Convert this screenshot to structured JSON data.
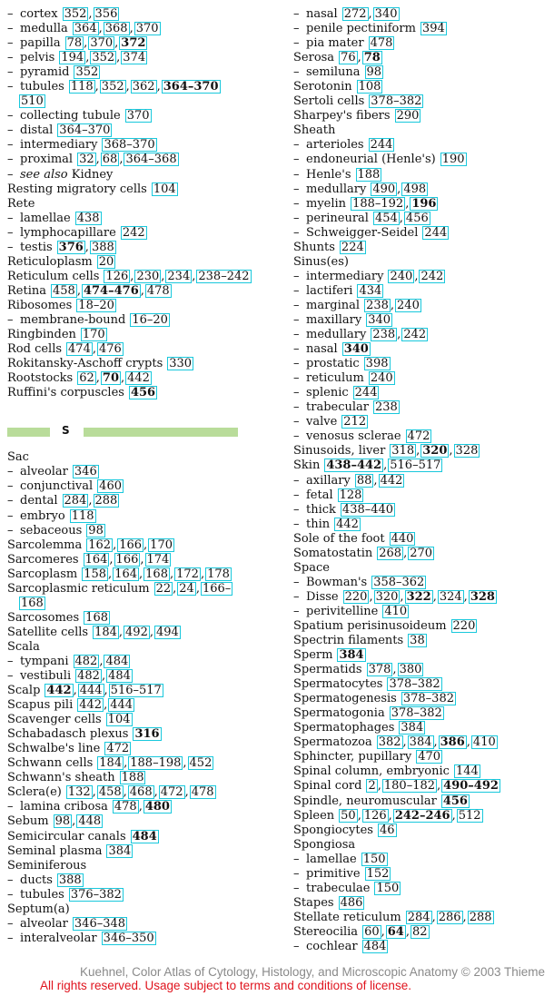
{
  "left_top": [
    {
      "sub": true,
      "term": "cortex",
      "pages": [
        [
          "352",
          0
        ],
        [
          "356",
          0
        ]
      ]
    },
    {
      "sub": true,
      "term": "medulla",
      "pages": [
        [
          "364",
          0
        ],
        [
          "368",
          0
        ],
        [
          "370",
          0
        ]
      ]
    },
    {
      "sub": true,
      "term": "papilla",
      "pages": [
        [
          "78",
          0
        ],
        [
          "370",
          0
        ],
        [
          "372",
          1
        ]
      ]
    },
    {
      "sub": true,
      "term": "pelvis",
      "pages": [
        [
          "194",
          0
        ],
        [
          "352",
          0
        ],
        [
          "374",
          0
        ]
      ]
    },
    {
      "sub": true,
      "term": "pyramid",
      "pages": [
        [
          "352",
          0
        ]
      ]
    },
    {
      "sub": true,
      "term": "tubules",
      "pages": [
        [
          "118",
          0
        ],
        [
          "352",
          0
        ],
        [
          "362",
          0
        ],
        [
          "364–370",
          1
        ]
      ]
    },
    {
      "cont": true,
      "term": "",
      "pages": [
        [
          "510",
          0
        ]
      ]
    },
    {
      "sub": true,
      "term": "collecting tubule",
      "pages": [
        [
          "370",
          0
        ]
      ]
    },
    {
      "sub": true,
      "term": "distal",
      "pages": [
        [
          "364–370",
          0
        ]
      ]
    },
    {
      "sub": true,
      "term": "intermediary",
      "pages": [
        [
          "368–370",
          0
        ]
      ]
    },
    {
      "sub": true,
      "term": "proximal",
      "pages": [
        [
          "32",
          0
        ],
        [
          "68",
          0
        ],
        [
          "364–368",
          0
        ]
      ]
    },
    {
      "sub": true,
      "italic": "see also",
      "term": "Kidney",
      "pages": []
    },
    {
      "term": "Resting migratory cells",
      "pages": [
        [
          "104",
          0
        ]
      ]
    },
    {
      "term": "Rete",
      "pages": []
    },
    {
      "sub": true,
      "term": "lamellae",
      "pages": [
        [
          "438",
          0
        ]
      ]
    },
    {
      "sub": true,
      "term": "lymphocapillare",
      "pages": [
        [
          "242",
          0
        ]
      ]
    },
    {
      "sub": true,
      "term": "testis",
      "pages": [
        [
          "376",
          1
        ],
        [
          "388",
          0
        ]
      ]
    },
    {
      "term": "Reticuloplasm",
      "pages": [
        [
          "20",
          0
        ]
      ]
    },
    {
      "term": "Reticulum cells",
      "pages": [
        [
          "126",
          0
        ],
        [
          "230",
          0
        ],
        [
          "234",
          0
        ],
        [
          "238–242",
          0
        ]
      ]
    },
    {
      "term": "Retina",
      "pages": [
        [
          "458",
          0
        ],
        [
          "474–476",
          1
        ],
        [
          "478",
          0
        ]
      ]
    },
    {
      "term": "Ribosomes",
      "pages": [
        [
          "18–20",
          0
        ]
      ]
    },
    {
      "sub": true,
      "term": "membrane-bound",
      "pages": [
        [
          "16–20",
          0
        ]
      ]
    },
    {
      "term": "Ringbinden",
      "pages": [
        [
          "170",
          0
        ]
      ]
    },
    {
      "term": "Rod cells",
      "pages": [
        [
          "474",
          0
        ],
        [
          "476",
          0
        ]
      ]
    },
    {
      "term": "Rokitansky-Aschoff crypts",
      "pages": [
        [
          "330",
          0
        ]
      ]
    },
    {
      "term": "Rootstocks",
      "pages": [
        [
          "62",
          0
        ],
        [
          "70",
          1
        ],
        [
          "442",
          0
        ]
      ]
    },
    {
      "term": "Ruffini's corpuscles",
      "pages": [
        [
          "456",
          1
        ]
      ]
    }
  ],
  "section_letter": "S",
  "left_bottom": [
    {
      "term": "Sac",
      "pages": []
    },
    {
      "sub": true,
      "term": "alveolar",
      "pages": [
        [
          "346",
          0
        ]
      ]
    },
    {
      "sub": true,
      "term": "conjunctival",
      "pages": [
        [
          "460",
          0
        ]
      ]
    },
    {
      "sub": true,
      "term": "dental",
      "pages": [
        [
          "284",
          0
        ],
        [
          "288",
          0
        ]
      ]
    },
    {
      "sub": true,
      "term": "embryo",
      "pages": [
        [
          "118",
          0
        ]
      ]
    },
    {
      "sub": true,
      "term": "sebaceous",
      "pages": [
        [
          "98",
          0
        ]
      ]
    },
    {
      "term": "Sarcolemma",
      "pages": [
        [
          "162",
          0
        ],
        [
          "166",
          0
        ],
        [
          "170",
          0
        ]
      ]
    },
    {
      "term": "Sarcomeres",
      "pages": [
        [
          "164",
          0
        ],
        [
          "166",
          0
        ],
        [
          "174",
          0
        ]
      ]
    },
    {
      "term": "Sarcoplasm",
      "pages": [
        [
          "158",
          0
        ],
        [
          "164",
          0
        ],
        [
          "168",
          0
        ],
        [
          "172",
          0
        ],
        [
          "178",
          0
        ]
      ]
    },
    {
      "term": "Sarcoplasmic reticulum",
      "pages": [
        [
          "22",
          0
        ],
        [
          "24",
          0
        ],
        [
          "166–",
          0
        ]
      ]
    },
    {
      "cont": true,
      "term": "",
      "pages": [
        [
          "168",
          0
        ]
      ]
    },
    {
      "term": "Sarcosomes",
      "pages": [
        [
          "168",
          0
        ]
      ]
    },
    {
      "term": "Satellite cells",
      "pages": [
        [
          "184",
          0
        ],
        [
          "492",
          0
        ],
        [
          "494",
          0
        ]
      ]
    },
    {
      "term": "Scala",
      "pages": []
    },
    {
      "sub": true,
      "term": "tympani",
      "pages": [
        [
          "482",
          0
        ],
        [
          "484",
          0
        ]
      ]
    },
    {
      "sub": true,
      "term": "vestibuli",
      "pages": [
        [
          "482",
          0
        ],
        [
          "484",
          0
        ]
      ]
    },
    {
      "term": "Scalp",
      "pages": [
        [
          "442",
          1
        ],
        [
          "444",
          0
        ],
        [
          "516–517",
          0
        ]
      ]
    },
    {
      "term": "Scapus pili",
      "pages": [
        [
          "442",
          0
        ],
        [
          "444",
          0
        ]
      ]
    },
    {
      "term": "Scavenger cells",
      "pages": [
        [
          "104",
          0
        ]
      ]
    },
    {
      "term": "Schabadasch plexus",
      "pages": [
        [
          "316",
          1
        ]
      ]
    },
    {
      "term": "Schwalbe's line",
      "pages": [
        [
          "472",
          0
        ]
      ]
    },
    {
      "term": "Schwann cells",
      "pages": [
        [
          "184",
          0
        ],
        [
          "188–198",
          0
        ],
        [
          "452",
          0
        ]
      ]
    },
    {
      "term": "Schwann's sheath",
      "pages": [
        [
          "188",
          0
        ]
      ]
    },
    {
      "term": "Sclera(e)",
      "pages": [
        [
          "132",
          0
        ],
        [
          "458",
          0
        ],
        [
          "468",
          0
        ],
        [
          "472",
          0
        ],
        [
          "478",
          0
        ]
      ]
    },
    {
      "sub": true,
      "term": "lamina cribosa",
      "pages": [
        [
          "478",
          0
        ],
        [
          "480",
          1
        ]
      ]
    },
    {
      "term": "Sebum",
      "pages": [
        [
          "98",
          0
        ],
        [
          "448",
          0
        ]
      ]
    },
    {
      "term": "Semicircular canals",
      "pages": [
        [
          "484",
          1
        ]
      ]
    },
    {
      "term": "Seminal plasma",
      "pages": [
        [
          "384",
          0
        ]
      ]
    },
    {
      "term": "Seminiferous",
      "pages": []
    },
    {
      "sub": true,
      "term": "ducts",
      "pages": [
        [
          "388",
          0
        ]
      ]
    },
    {
      "sub": true,
      "term": "tubules",
      "pages": [
        [
          "376–382",
          0
        ]
      ]
    },
    {
      "term": "Septum(a)",
      "pages": []
    },
    {
      "sub": true,
      "term": "alveolar",
      "pages": [
        [
          "346–348",
          0
        ]
      ]
    },
    {
      "sub": true,
      "term": "interalveolar",
      "pages": [
        [
          "346–350",
          0
        ]
      ]
    }
  ],
  "right": [
    {
      "sub": true,
      "term": "nasal",
      "pages": [
        [
          "272",
          0
        ],
        [
          "340",
          0
        ]
      ]
    },
    {
      "sub": true,
      "term": "penile pectiniform",
      "pages": [
        [
          "394",
          0
        ]
      ]
    },
    {
      "sub": true,
      "term": "pia mater",
      "pages": [
        [
          "478",
          0
        ]
      ]
    },
    {
      "term": "Serosa",
      "pages": [
        [
          "76",
          0
        ],
        [
          "78",
          1
        ]
      ]
    },
    {
      "sub": true,
      "term": "semiluna",
      "pages": [
        [
          "98",
          0
        ]
      ]
    },
    {
      "term": "Serotonin",
      "pages": [
        [
          "108",
          0
        ]
      ]
    },
    {
      "term": "Sertoli cells",
      "pages": [
        [
          "378–382",
          0
        ]
      ]
    },
    {
      "term": "Sharpey's fibers",
      "pages": [
        [
          "290",
          0
        ]
      ]
    },
    {
      "term": "Sheath",
      "pages": []
    },
    {
      "sub": true,
      "term": "arterioles",
      "pages": [
        [
          "244",
          0
        ]
      ]
    },
    {
      "sub": true,
      "term": "endoneurial (Henle's)",
      "pages": [
        [
          "190",
          0
        ]
      ]
    },
    {
      "sub": true,
      "term": "Henle's",
      "pages": [
        [
          "188",
          0
        ]
      ]
    },
    {
      "sub": true,
      "term": "medullary",
      "pages": [
        [
          "490",
          0
        ],
        [
          "498",
          0
        ]
      ]
    },
    {
      "sub": true,
      "term": "myelin",
      "pages": [
        [
          "188–192",
          0
        ],
        [
          "196",
          1
        ]
      ]
    },
    {
      "sub": true,
      "term": "perineural",
      "pages": [
        [
          "454",
          0
        ],
        [
          "456",
          0
        ]
      ]
    },
    {
      "sub": true,
      "term": "Schweigger-Seidel",
      "pages": [
        [
          "244",
          0
        ]
      ]
    },
    {
      "term": "Shunts",
      "pages": [
        [
          "224",
          0
        ]
      ]
    },
    {
      "term": "Sinus(es)",
      "pages": []
    },
    {
      "sub": true,
      "term": "intermediary",
      "pages": [
        [
          "240",
          0
        ],
        [
          "242",
          0
        ]
      ]
    },
    {
      "sub": true,
      "term": "lactiferi",
      "pages": [
        [
          "434",
          0
        ]
      ]
    },
    {
      "sub": true,
      "term": "marginal",
      "pages": [
        [
          "238",
          0
        ],
        [
          "240",
          0
        ]
      ]
    },
    {
      "sub": true,
      "term": "maxillary",
      "pages": [
        [
          "340",
          0
        ]
      ]
    },
    {
      "sub": true,
      "term": "medullary",
      "pages": [
        [
          "238",
          0
        ],
        [
          "242",
          0
        ]
      ]
    },
    {
      "sub": true,
      "term": "nasal",
      "pages": [
        [
          "340",
          1
        ]
      ]
    },
    {
      "sub": true,
      "term": "prostatic",
      "pages": [
        [
          "398",
          0
        ]
      ]
    },
    {
      "sub": true,
      "term": "reticulum",
      "pages": [
        [
          "240",
          0
        ]
      ]
    },
    {
      "sub": true,
      "term": "splenic",
      "pages": [
        [
          "244",
          0
        ]
      ]
    },
    {
      "sub": true,
      "term": "trabecular",
      "pages": [
        [
          "238",
          0
        ]
      ]
    },
    {
      "sub": true,
      "term": "valve",
      "pages": [
        [
          "212",
          0
        ]
      ]
    },
    {
      "sub": true,
      "term": "venosus sclerae",
      "pages": [
        [
          "472",
          0
        ]
      ]
    },
    {
      "term": "Sinusoids, liver",
      "pages": [
        [
          "318",
          0
        ],
        [
          "320",
          1
        ],
        [
          "328",
          0
        ]
      ]
    },
    {
      "term": "Skin",
      "pages": [
        [
          "438–442",
          1
        ],
        [
          "516–517",
          0
        ]
      ]
    },
    {
      "sub": true,
      "term": "axillary",
      "pages": [
        [
          "88",
          0
        ],
        [
          "442",
          0
        ]
      ]
    },
    {
      "sub": true,
      "term": "fetal",
      "pages": [
        [
          "128",
          0
        ]
      ]
    },
    {
      "sub": true,
      "term": "thick",
      "pages": [
        [
          "438–440",
          0
        ]
      ]
    },
    {
      "sub": true,
      "term": "thin",
      "pages": [
        [
          "442",
          0
        ]
      ]
    },
    {
      "term": "Sole of the foot",
      "pages": [
        [
          "440",
          0
        ]
      ]
    },
    {
      "term": "Somatostatin",
      "pages": [
        [
          "268",
          0
        ],
        [
          "270",
          0
        ]
      ]
    },
    {
      "term": "Space",
      "pages": []
    },
    {
      "sub": true,
      "term": "Bowman's",
      "pages": [
        [
          "358–362",
          0
        ]
      ]
    },
    {
      "sub": true,
      "term": "Disse",
      "pages": [
        [
          "220",
          0
        ],
        [
          "320",
          0
        ],
        [
          "322",
          1
        ],
        [
          "324",
          0
        ],
        [
          "328",
          1
        ]
      ]
    },
    {
      "sub": true,
      "term": "perivitelline",
      "pages": [
        [
          "410",
          0
        ]
      ]
    },
    {
      "term": "Spatium perisinusoideum",
      "pages": [
        [
          "220",
          0
        ]
      ]
    },
    {
      "term": "Spectrin filaments",
      "pages": [
        [
          "38",
          0
        ]
      ]
    },
    {
      "term": "Sperm",
      "pages": [
        [
          "384",
          1
        ]
      ]
    },
    {
      "term": "Spermatids",
      "pages": [
        [
          "378",
          0
        ],
        [
          "380",
          0
        ]
      ]
    },
    {
      "term": "Spermatocytes",
      "pages": [
        [
          "378–382",
          0
        ]
      ]
    },
    {
      "term": "Spermatogenesis",
      "pages": [
        [
          "378–382",
          0
        ]
      ]
    },
    {
      "term": "Spermatogonia",
      "pages": [
        [
          "378–382",
          0
        ]
      ]
    },
    {
      "term": "Spermatophages",
      "pages": [
        [
          "384",
          0
        ]
      ]
    },
    {
      "term": "Spermatozoa",
      "pages": [
        [
          "382",
          0
        ],
        [
          "384",
          0
        ],
        [
          "386",
          1
        ],
        [
          "410",
          0
        ]
      ]
    },
    {
      "term": "Sphincter, pupillary",
      "pages": [
        [
          "470",
          0
        ]
      ]
    },
    {
      "term": "Spinal column, embryonic",
      "pages": [
        [
          "144",
          0
        ]
      ]
    },
    {
      "term": "Spinal cord",
      "pages": [
        [
          "2",
          0
        ],
        [
          "180–182",
          0
        ],
        [
          "490–492",
          1
        ]
      ]
    },
    {
      "term": "Spindle, neuromuscular",
      "pages": [
        [
          "456",
          1
        ]
      ]
    },
    {
      "term": "Spleen",
      "pages": [
        [
          "50",
          0
        ],
        [
          "126",
          0
        ],
        [
          "242–246",
          1
        ],
        [
          "512",
          0
        ]
      ]
    },
    {
      "term": "Spongiocytes",
      "pages": [
        [
          "46",
          0
        ]
      ]
    },
    {
      "term": "Spongiosa",
      "pages": []
    },
    {
      "sub": true,
      "term": "lamellae",
      "pages": [
        [
          "150",
          0
        ]
      ]
    },
    {
      "sub": true,
      "term": "primitive",
      "pages": [
        [
          "152",
          0
        ]
      ]
    },
    {
      "sub": true,
      "term": "trabeculae",
      "pages": [
        [
          "150",
          0
        ]
      ]
    },
    {
      "term": "Stapes",
      "pages": [
        [
          "486",
          0
        ]
      ]
    },
    {
      "term": "Stellate reticulum",
      "pages": [
        [
          "284",
          0
        ],
        [
          "286",
          0
        ],
        [
          "288",
          0
        ]
      ]
    },
    {
      "term": "Stereocilia",
      "pages": [
        [
          "60",
          0
        ],
        [
          "64",
          1
        ],
        [
          "82",
          0
        ]
      ]
    },
    {
      "sub": true,
      "term": "cochlear",
      "pages": [
        [
          "484",
          0
        ]
      ]
    }
  ],
  "footer": {
    "line1": "Kuehnel, Color Atlas of Cytology, Histology, and Microscopic Anatomy © 2003 Thieme",
    "line2": "All rights reserved. Usage subject to terms and conditions of license."
  }
}
